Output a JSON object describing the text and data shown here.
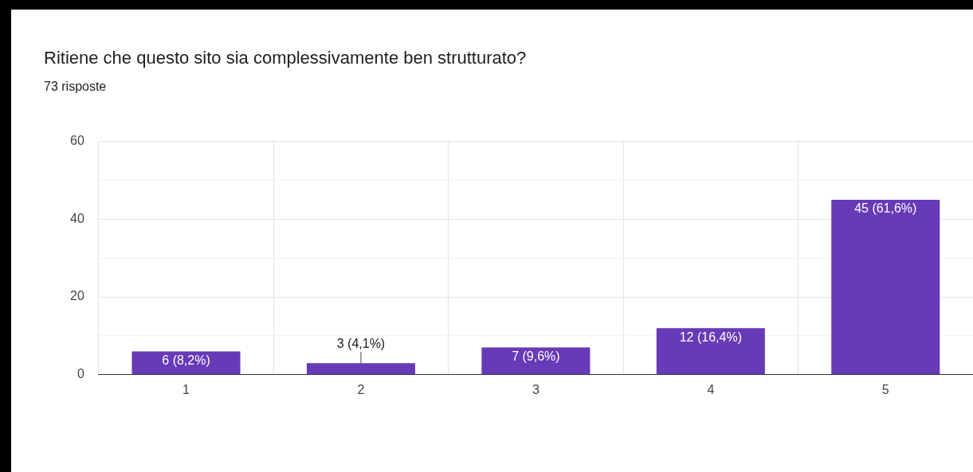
{
  "chart_data": {
    "type": "bar",
    "title": "Ritiene che questo sito sia complessivamente ben strutturato?",
    "subtitle": "73 risposte",
    "categories": [
      "1",
      "2",
      "3",
      "4",
      "5"
    ],
    "values": [
      6,
      3,
      7,
      12,
      45
    ],
    "value_labels": [
      "6 (8,2%)",
      "3 (4,1%)",
      "7 (9,6%)",
      "12 (16,4%)",
      "45 (61,6%)"
    ],
    "color": "#673ab7",
    "ylim": [
      0,
      60
    ],
    "yticks": [
      0,
      {
        "value": 10,
        "label": null
      },
      20,
      {
        "value": 30,
        "label": null
      },
      40,
      {
        "value": 50,
        "label": null
      },
      60
    ],
    "grid": true,
    "legend": false
  }
}
